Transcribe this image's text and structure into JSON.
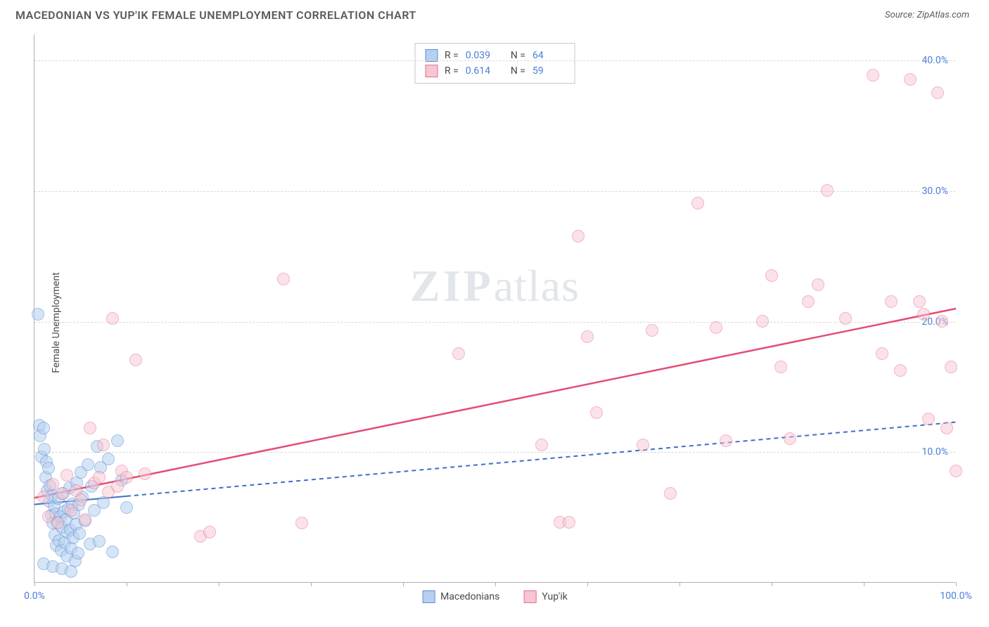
{
  "header": {
    "title": "MACEDONIAN VS YUP'IK FEMALE UNEMPLOYMENT CORRELATION CHART",
    "source_prefix": "Source: ",
    "source_name": "ZipAtlas.com"
  },
  "ylabel": "Female Unemployment",
  "watermark": {
    "zip": "ZIP",
    "atlas": "atlas"
  },
  "chart": {
    "type": "scatter",
    "xlim": [
      0,
      100
    ],
    "ylim": [
      0,
      42
    ],
    "x_ticks": [
      0,
      10,
      20,
      30,
      40,
      50,
      60,
      70,
      80,
      90,
      100
    ],
    "x_tick_labels": {
      "0": "0.0%",
      "100": "100.0%"
    },
    "y_gridlines": [
      10,
      20,
      30,
      40
    ],
    "y_tick_labels": {
      "10": "10.0%",
      "20": "20.0%",
      "30": "30.0%",
      "40": "40.0%"
    },
    "background_color": "#ffffff",
    "grid_color": "#d8d8d8",
    "axis_color": "#b0b0b0",
    "tick_label_color": "#4a7dd8",
    "marker_radius": 9,
    "marker_border_width": 1.5,
    "series": [
      {
        "name": "Macedonians",
        "fill": "#b6d0ef",
        "stroke": "#5d8fd6",
        "fill_opacity": 0.55,
        "R": "0.039",
        "N": "64",
        "trend": {
          "x1": 0,
          "y1": 6.0,
          "x2": 100,
          "y2": 12.3,
          "solid_until_x": 10,
          "color": "#3d6fc7",
          "width": 2,
          "dash": "6,5"
        },
        "points": [
          [
            0.4,
            20.5
          ],
          [
            0.5,
            12.0
          ],
          [
            0.6,
            11.2
          ],
          [
            0.8,
            9.6
          ],
          [
            1.0,
            11.8
          ],
          [
            1.1,
            10.2
          ],
          [
            1.2,
            8.0
          ],
          [
            1.3,
            9.2
          ],
          [
            1.4,
            7.0
          ],
          [
            1.5,
            8.7
          ],
          [
            1.6,
            6.2
          ],
          [
            1.7,
            7.4
          ],
          [
            1.8,
            5.1
          ],
          [
            1.9,
            6.6
          ],
          [
            2.0,
            4.5
          ],
          [
            2.1,
            5.8
          ],
          [
            2.2,
            3.6
          ],
          [
            2.3,
            5.2
          ],
          [
            2.4,
            2.8
          ],
          [
            2.5,
            4.6
          ],
          [
            2.6,
            6.4
          ],
          [
            2.7,
            3.2
          ],
          [
            2.8,
            5.0
          ],
          [
            2.9,
            2.4
          ],
          [
            3.0,
            4.2
          ],
          [
            3.1,
            6.8
          ],
          [
            3.2,
            5.4
          ],
          [
            3.3,
            3.0
          ],
          [
            3.4,
            4.8
          ],
          [
            3.5,
            2.0
          ],
          [
            3.6,
            3.8
          ],
          [
            3.7,
            5.6
          ],
          [
            3.8,
            7.2
          ],
          [
            3.9,
            4.0
          ],
          [
            4.0,
            2.6
          ],
          [
            4.1,
            6.0
          ],
          [
            4.2,
            3.4
          ],
          [
            4.3,
            5.3
          ],
          [
            4.4,
            1.6
          ],
          [
            4.5,
            4.4
          ],
          [
            4.6,
            7.6
          ],
          [
            4.7,
            2.2
          ],
          [
            4.8,
            5.9
          ],
          [
            4.9,
            3.7
          ],
          [
            5.0,
            8.4
          ],
          [
            5.2,
            6.5
          ],
          [
            5.5,
            4.7
          ],
          [
            5.8,
            9.0
          ],
          [
            6.0,
            2.9
          ],
          [
            6.2,
            7.3
          ],
          [
            6.5,
            5.5
          ],
          [
            6.8,
            10.4
          ],
          [
            7.0,
            3.1
          ],
          [
            7.2,
            8.8
          ],
          [
            7.5,
            6.1
          ],
          [
            8.0,
            9.4
          ],
          [
            8.5,
            2.3
          ],
          [
            9.0,
            10.8
          ],
          [
            9.5,
            7.8
          ],
          [
            10.0,
            5.7
          ],
          [
            1.0,
            1.4
          ],
          [
            2.0,
            1.2
          ],
          [
            3.0,
            1.0
          ],
          [
            4.0,
            0.8
          ]
        ]
      },
      {
        "name": "Yup'ik",
        "fill": "#f6c6d2",
        "stroke": "#e36f8f",
        "fill_opacity": 0.5,
        "R": "0.614",
        "N": "59",
        "trend": {
          "x1": 0,
          "y1": 6.5,
          "x2": 100,
          "y2": 21.0,
          "solid_until_x": 100,
          "color": "#e34d74",
          "width": 2.5
        },
        "points": [
          [
            1.0,
            6.5
          ],
          [
            1.5,
            5.0
          ],
          [
            2.0,
            7.5
          ],
          [
            2.5,
            4.5
          ],
          [
            3.0,
            6.8
          ],
          [
            3.5,
            8.2
          ],
          [
            4.0,
            5.5
          ],
          [
            4.5,
            7.0
          ],
          [
            5.0,
            6.3
          ],
          [
            5.5,
            4.8
          ],
          [
            6.0,
            11.8
          ],
          [
            6.5,
            7.6
          ],
          [
            7.0,
            8.0
          ],
          [
            7.5,
            10.5
          ],
          [
            8.0,
            6.9
          ],
          [
            8.5,
            20.2
          ],
          [
            9.0,
            7.3
          ],
          [
            9.5,
            8.5
          ],
          [
            10.0,
            8.0
          ],
          [
            11.0,
            17.0
          ],
          [
            12.0,
            8.3
          ],
          [
            18.0,
            3.5
          ],
          [
            19.0,
            3.8
          ],
          [
            27.0,
            23.2
          ],
          [
            29.0,
            4.5
          ],
          [
            46.0,
            17.5
          ],
          [
            55.0,
            10.5
          ],
          [
            57.0,
            4.6
          ],
          [
            58.0,
            4.6
          ],
          [
            59.0,
            26.5
          ],
          [
            60.0,
            18.8
          ],
          [
            61.0,
            13.0
          ],
          [
            66.0,
            10.5
          ],
          [
            67.0,
            19.3
          ],
          [
            69.0,
            6.8
          ],
          [
            72.0,
            29.0
          ],
          [
            74.0,
            19.5
          ],
          [
            75.0,
            10.8
          ],
          [
            79.0,
            20.0
          ],
          [
            80.0,
            23.5
          ],
          [
            81.0,
            16.5
          ],
          [
            82.0,
            11.0
          ],
          [
            84.0,
            21.5
          ],
          [
            85.0,
            22.8
          ],
          [
            86.0,
            30.0
          ],
          [
            88.0,
            20.2
          ],
          [
            91.0,
            38.8
          ],
          [
            92.0,
            17.5
          ],
          [
            93.0,
            21.5
          ],
          [
            94.0,
            16.2
          ],
          [
            95.0,
            38.5
          ],
          [
            96.0,
            21.5
          ],
          [
            96.5,
            20.5
          ],
          [
            97.0,
            12.5
          ],
          [
            98.0,
            37.5
          ],
          [
            98.5,
            20.0
          ],
          [
            99.0,
            11.8
          ],
          [
            99.5,
            16.5
          ],
          [
            100.0,
            8.5
          ]
        ]
      }
    ]
  },
  "legend_top": {
    "r_label": "R =",
    "n_label": "N ="
  },
  "legend_bottom": [
    {
      "label": "Macedonians",
      "fill": "#b6d0ef",
      "stroke": "#5d8fd6"
    },
    {
      "label": "Yup'ik",
      "fill": "#f6c6d2",
      "stroke": "#e36f8f"
    }
  ]
}
